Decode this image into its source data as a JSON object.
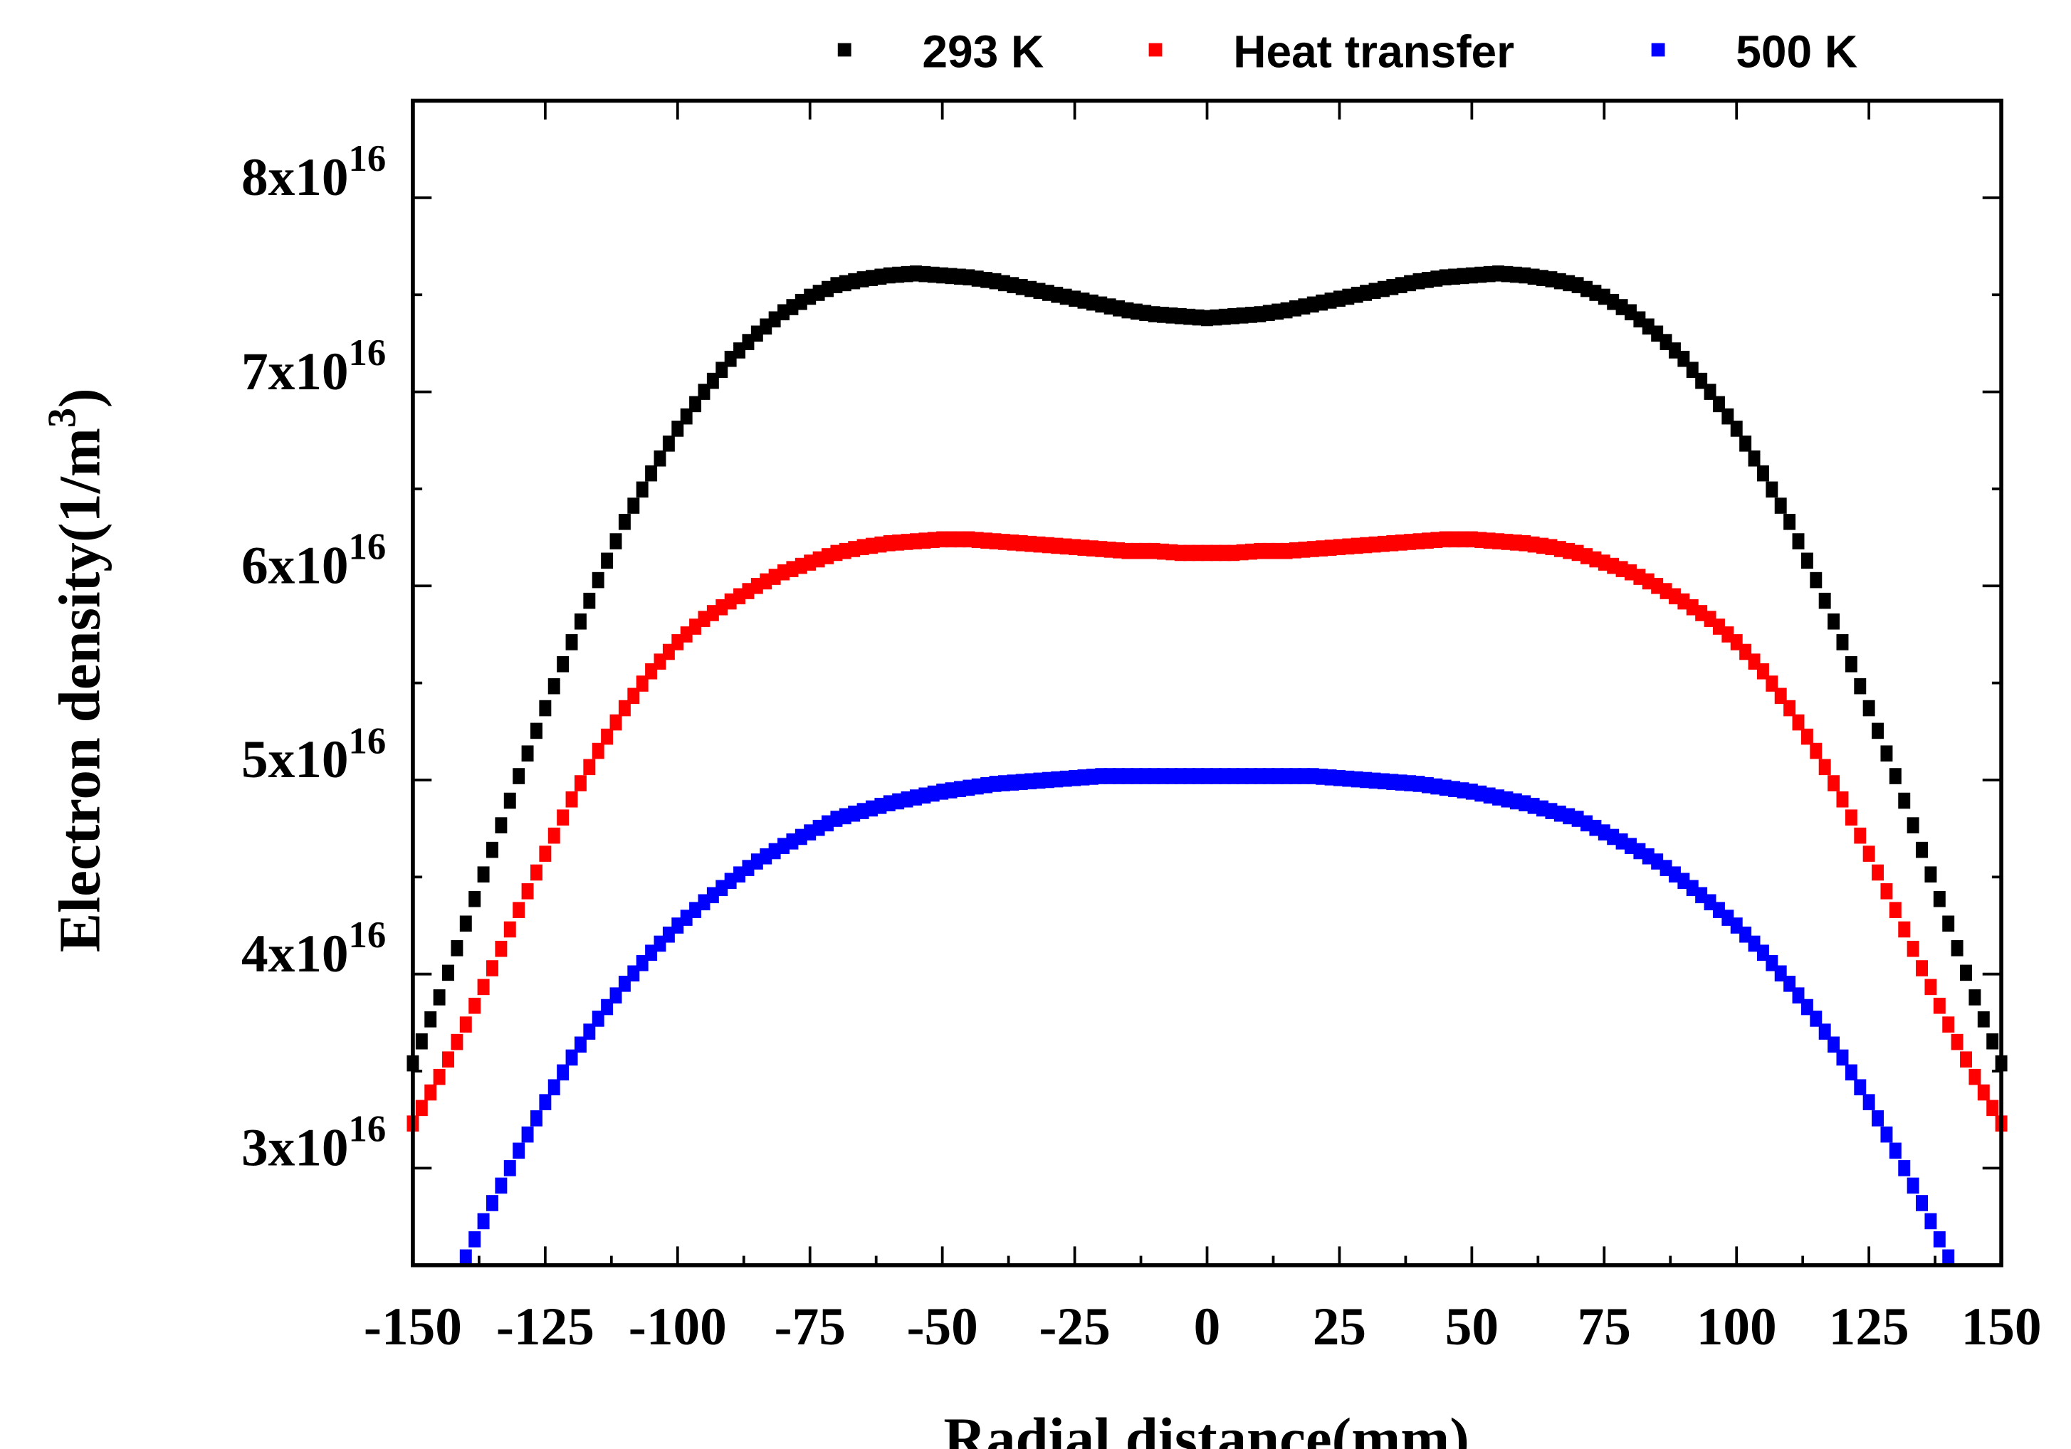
{
  "chart_data": {
    "type": "scatter",
    "title": "",
    "xlabel": "Radial distance(mm)",
    "ylabel": "Electron density(1/m",
    "ylabel_superscript": "3",
    "ylabel_close": ")",
    "xlim": [
      -150,
      150
    ],
    "ylim": [
      2.5e+16,
      8.5e+16
    ],
    "grid": false,
    "legend_position": "top",
    "x_ticks": [
      {
        "value": -150,
        "label": "-150"
      },
      {
        "value": -125,
        "label": "-125"
      },
      {
        "value": -100,
        "label": "-100"
      },
      {
        "value": -75,
        "label": "-75"
      },
      {
        "value": -50,
        "label": "-50"
      },
      {
        "value": -25,
        "label": "-25"
      },
      {
        "value": 0,
        "label": "0"
      },
      {
        "value": 25,
        "label": "25"
      },
      {
        "value": 50,
        "label": "50"
      },
      {
        "value": 75,
        "label": "75"
      },
      {
        "value": 100,
        "label": "100"
      },
      {
        "value": 125,
        "label": "125"
      },
      {
        "value": 150,
        "label": "150"
      }
    ],
    "y_ticks": [
      {
        "value": 3e+16,
        "mantissa": "3x10",
        "exp": "16"
      },
      {
        "value": 4e+16,
        "mantissa": "4x10",
        "exp": "16"
      },
      {
        "value": 5e+16,
        "mantissa": "5x10",
        "exp": "16"
      },
      {
        "value": 6e+16,
        "mantissa": "6x10",
        "exp": "16"
      },
      {
        "value": 7e+16,
        "mantissa": "7x10",
        "exp": "16"
      },
      {
        "value": 8e+16,
        "mantissa": "8x10",
        "exp": "16"
      }
    ],
    "y_unit_scale": 1e+16,
    "x": [
      -150,
      -145,
      -140,
      -135,
      -130,
      -125,
      -120,
      -115,
      -110,
      -105,
      -100,
      -95,
      -90,
      -85,
      -80,
      -75,
      -70,
      -65,
      -60,
      -55,
      -50,
      -45,
      -40,
      -35,
      -30,
      -25,
      -20,
      -15,
      -10,
      -5,
      0,
      5,
      10,
      15,
      20,
      25,
      30,
      35,
      40,
      45,
      50,
      55,
      60,
      65,
      70,
      75,
      80,
      85,
      90,
      95,
      100,
      105,
      110,
      115,
      120,
      125,
      130,
      135,
      140,
      145,
      150
    ],
    "series": [
      {
        "name": "293 K",
        "color": "#000000",
        "values_e16": [
          3.54,
          3.88,
          4.26,
          4.64,
          5.02,
          5.37,
          5.71,
          6.03,
          6.33,
          6.58,
          6.81,
          7.0,
          7.17,
          7.3,
          7.41,
          7.49,
          7.55,
          7.58,
          7.6,
          7.61,
          7.6,
          7.59,
          7.57,
          7.54,
          7.51,
          7.48,
          7.45,
          7.42,
          7.4,
          7.39,
          7.38,
          7.39,
          7.4,
          7.42,
          7.45,
          7.48,
          7.51,
          7.54,
          7.57,
          7.59,
          7.6,
          7.61,
          7.6,
          7.58,
          7.55,
          7.49,
          7.41,
          7.3,
          7.17,
          7.0,
          6.81,
          6.58,
          6.33,
          6.03,
          5.71,
          5.37,
          5.02,
          4.64,
          4.26,
          3.88,
          3.54
        ]
      },
      {
        "name": "Heat transfer",
        "color": "#ff0000",
        "values_e16": [
          3.23,
          3.47,
          3.74,
          4.03,
          4.33,
          4.62,
          4.9,
          5.15,
          5.37,
          5.56,
          5.71,
          5.83,
          5.92,
          6.0,
          6.07,
          6.12,
          6.17,
          6.2,
          6.22,
          6.23,
          6.24,
          6.24,
          6.23,
          6.22,
          6.21,
          6.2,
          6.19,
          6.18,
          6.18,
          6.17,
          6.17,
          6.17,
          6.18,
          6.18,
          6.19,
          6.2,
          6.21,
          6.22,
          6.23,
          6.24,
          6.24,
          6.23,
          6.22,
          6.2,
          6.17,
          6.12,
          6.07,
          6.0,
          5.92,
          5.83,
          5.71,
          5.56,
          5.37,
          5.15,
          4.9,
          4.62,
          4.33,
          4.03,
          3.74,
          3.47,
          3.23
        ]
      },
      {
        "name": "500 K",
        "color": "#0000ff",
        "values_e16": [
          null,
          null,
          2.54,
          2.82,
          3.09,
          3.34,
          3.57,
          3.77,
          3.95,
          4.11,
          4.25,
          4.37,
          4.48,
          4.58,
          4.66,
          4.73,
          4.8,
          4.84,
          4.88,
          4.91,
          4.94,
          4.96,
          4.98,
          4.99,
          5.0,
          5.01,
          5.02,
          5.02,
          5.02,
          5.02,
          5.02,
          5.02,
          5.02,
          5.02,
          5.02,
          5.01,
          5.0,
          4.99,
          4.98,
          4.96,
          4.94,
          4.91,
          4.88,
          4.84,
          4.8,
          4.73,
          4.66,
          4.58,
          4.48,
          4.37,
          4.25,
          4.11,
          3.95,
          3.77,
          3.57,
          3.34,
          3.09,
          2.82,
          2.54,
          null,
          null
        ]
      }
    ]
  }
}
